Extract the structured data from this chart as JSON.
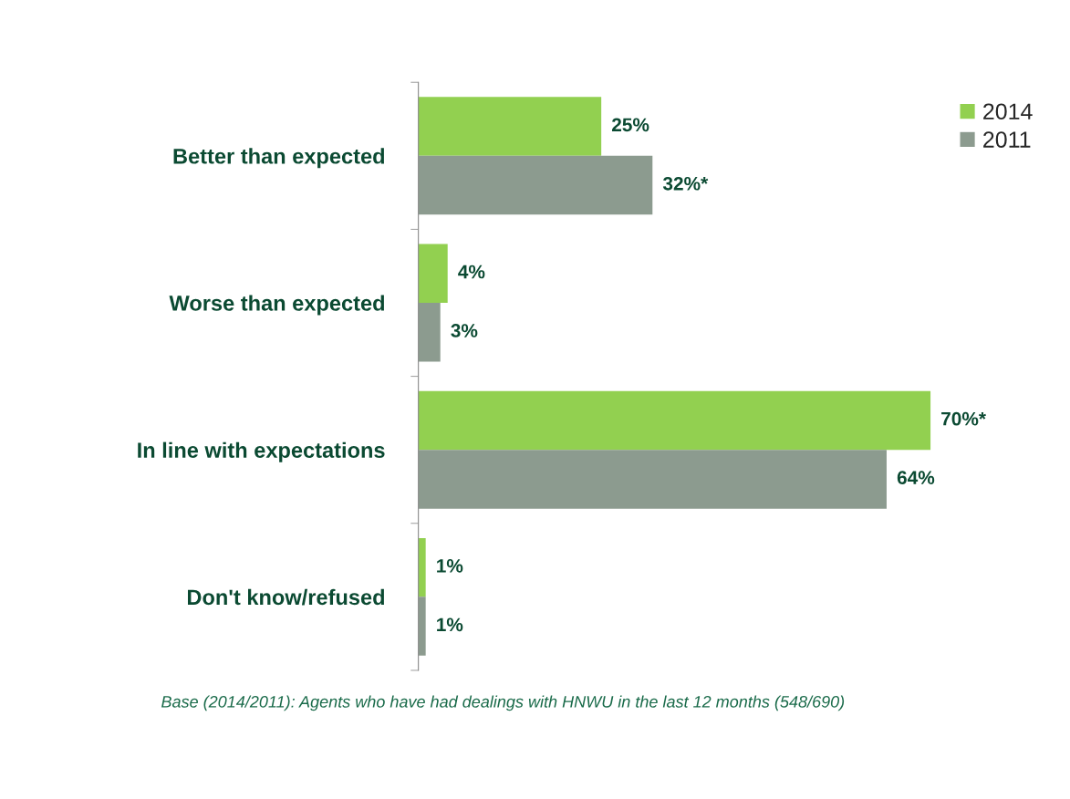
{
  "chart_data": {
    "type": "bar",
    "orientation": "horizontal",
    "categories": [
      "Better than expected",
      "Worse than expected",
      "In line with expectations",
      "Don't know/refused"
    ],
    "series": [
      {
        "name": "2014",
        "color": "#92d050",
        "values": [
          25,
          4,
          70,
          1
        ],
        "value_labels": [
          "25%",
          "4%",
          "70%*",
          "1%"
        ]
      },
      {
        "name": "2011",
        "color": "#8c9b8f",
        "values": [
          32,
          3,
          64,
          1
        ],
        "value_labels": [
          "32%*",
          "3%",
          "64%",
          "1%"
        ]
      }
    ],
    "legend": "top right",
    "grid": false,
    "annotations": [
      "Base (2014/2011): Agents who have had dealings with HNWU in the last 12 months (548/690)"
    ]
  }
}
